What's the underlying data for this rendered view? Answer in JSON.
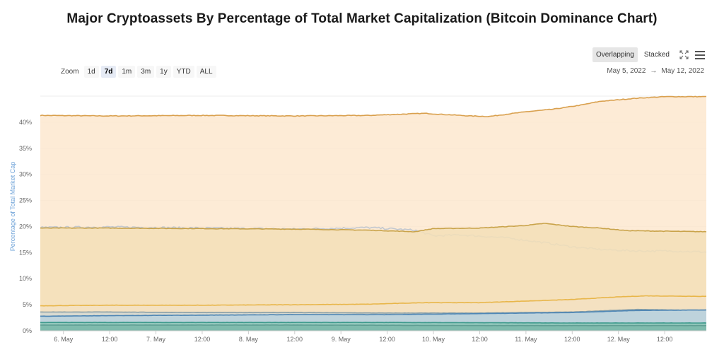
{
  "title": "Major Cryptoassets By Percentage of Total Market Capitalization (Bitcoin Dominance Chart)",
  "modes": [
    {
      "label": "Overlapping",
      "active": true
    },
    {
      "label": "Stacked",
      "active": false
    }
  ],
  "icons": {
    "fullscreen": "fullscreen-icon",
    "menu": "hamburger-menu-icon"
  },
  "zoom": {
    "label": "Zoom",
    "buttons": [
      {
        "label": "1d",
        "active": false
      },
      {
        "label": "7d",
        "active": true
      },
      {
        "label": "1m",
        "active": false
      },
      {
        "label": "3m",
        "active": false
      },
      {
        "label": "1y",
        "active": false
      },
      {
        "label": "YTD",
        "active": false
      },
      {
        "label": "ALL",
        "active": false
      }
    ]
  },
  "range": {
    "from": "May 5, 2022",
    "separator": "→",
    "to": "May 12, 2022"
  },
  "chart_data": {
    "type": "area",
    "ylabel": "Percentage of Total Market Cap",
    "ylim": [
      0,
      45
    ],
    "y_ticks": [
      "0%",
      "5%",
      "10%",
      "15%",
      "20%",
      "25%",
      "30%",
      "35%",
      "40%"
    ],
    "y_tick_values": [
      0,
      5,
      10,
      15,
      20,
      25,
      30,
      35,
      40
    ],
    "x_range_days": [
      5.75,
      12.95
    ],
    "x_ticks": [
      {
        "x": 6.0,
        "label": "6. May"
      },
      {
        "x": 6.5,
        "label": "12:00"
      },
      {
        "x": 7.0,
        "label": "7. May"
      },
      {
        "x": 7.5,
        "label": "12:00"
      },
      {
        "x": 8.0,
        "label": "8. May"
      },
      {
        "x": 8.5,
        "label": "12:00"
      },
      {
        "x": 9.0,
        "label": "9. May"
      },
      {
        "x": 9.5,
        "label": "12:00"
      },
      {
        "x": 10.0,
        "label": "10. May"
      },
      {
        "x": 10.5,
        "label": "12:00"
      },
      {
        "x": 11.0,
        "label": "11. May"
      },
      {
        "x": 11.5,
        "label": "12:00"
      },
      {
        "x": 12.0,
        "label": "12. May"
      },
      {
        "x": 12.5,
        "label": "12:00"
      }
    ],
    "grid": true,
    "legend": "none",
    "series": [
      {
        "color": "#d9a04e",
        "fill": "#fde8cf",
        "noise": 0.12,
        "points": [
          [
            5.75,
            41.3
          ],
          [
            6.5,
            41.2
          ],
          [
            7.5,
            41.3
          ],
          [
            8.5,
            41.2
          ],
          [
            9.3,
            41.3
          ],
          [
            9.9,
            41.7
          ],
          [
            10.4,
            41.2
          ],
          [
            10.6,
            41.1
          ],
          [
            11.0,
            42.0
          ],
          [
            11.3,
            42.5
          ],
          [
            11.6,
            43.3
          ],
          [
            11.8,
            44.0
          ],
          [
            12.2,
            44.6
          ],
          [
            12.5,
            44.9
          ],
          [
            12.95,
            44.9
          ]
        ]
      },
      {
        "color": "#c3c8cf",
        "fill": "none",
        "noise": 0.35,
        "points": [
          [
            5.75,
            19.8
          ],
          [
            6.5,
            19.9
          ],
          [
            7.5,
            19.7
          ],
          [
            8.5,
            19.5
          ],
          [
            9.3,
            19.8
          ],
          [
            9.8,
            19.3
          ],
          [
            10.0,
            18.2
          ],
          [
            10.3,
            18.4
          ],
          [
            10.8,
            17.8
          ],
          [
            11.2,
            16.9
          ],
          [
            11.5,
            16.1
          ],
          [
            11.8,
            15.6
          ],
          [
            12.2,
            15.3
          ],
          [
            12.6,
            15.3
          ],
          [
            12.95,
            15.1
          ]
        ]
      },
      {
        "color": "#c9a34a",
        "fill": "#f3dfb7",
        "noise": 0.1,
        "points": [
          [
            5.75,
            19.7
          ],
          [
            6.5,
            19.7
          ],
          [
            7.5,
            19.6
          ],
          [
            8.5,
            19.5
          ],
          [
            9.3,
            19.3
          ],
          [
            9.8,
            19.0
          ],
          [
            10.0,
            19.6
          ],
          [
            10.5,
            19.7
          ],
          [
            11.0,
            20.2
          ],
          [
            11.2,
            20.6
          ],
          [
            11.5,
            20.0
          ],
          [
            11.8,
            19.7
          ],
          [
            12.1,
            19.2
          ],
          [
            12.5,
            19.1
          ],
          [
            12.95,
            19.0
          ]
        ]
      },
      {
        "color": "#e8b64a",
        "fill": "#f3e1c2",
        "noise": 0.06,
        "points": [
          [
            5.75,
            4.8
          ],
          [
            6.5,
            4.9
          ],
          [
            7.5,
            4.9
          ],
          [
            8.5,
            5.0
          ],
          [
            9.3,
            5.1
          ],
          [
            9.9,
            5.4
          ],
          [
            10.5,
            5.4
          ],
          [
            11.0,
            5.7
          ],
          [
            11.5,
            6.0
          ],
          [
            12.0,
            6.5
          ],
          [
            12.3,
            6.7
          ],
          [
            12.95,
            6.6
          ]
        ]
      },
      {
        "color": "#8aa0a8",
        "fill": "#d4d8d2",
        "noise": 0.04,
        "points": [
          [
            5.75,
            3.6
          ],
          [
            6.5,
            3.6
          ],
          [
            7.5,
            3.5
          ],
          [
            8.5,
            3.5
          ],
          [
            9.5,
            3.4
          ],
          [
            10.5,
            3.4
          ],
          [
            11.5,
            3.6
          ],
          [
            12.2,
            4.1
          ],
          [
            12.95,
            3.9
          ]
        ]
      },
      {
        "color": "#4e86b5",
        "fill": "#b9d1de",
        "noise": 0.04,
        "points": [
          [
            5.75,
            2.8
          ],
          [
            6.5,
            2.9
          ],
          [
            7.5,
            3.0
          ],
          [
            8.5,
            3.1
          ],
          [
            9.5,
            3.1
          ],
          [
            10.5,
            3.3
          ],
          [
            11.5,
            3.5
          ],
          [
            12.2,
            3.9
          ],
          [
            12.95,
            4.0
          ]
        ]
      },
      {
        "color": "#3d9a8c",
        "fill": "#8cc6b6",
        "noise": 0.03,
        "points": [
          [
            5.75,
            1.6
          ],
          [
            7.5,
            1.6
          ],
          [
            9.5,
            1.6
          ],
          [
            11.5,
            1.5
          ],
          [
            12.95,
            1.5
          ]
        ]
      },
      {
        "color": "#5f9e93",
        "fill": "#7bb8aa",
        "noise": 0.02,
        "points": [
          [
            5.75,
            1.1
          ],
          [
            8.5,
            1.1
          ],
          [
            10.5,
            1.0
          ],
          [
            12.95,
            1.0
          ]
        ]
      }
    ]
  }
}
